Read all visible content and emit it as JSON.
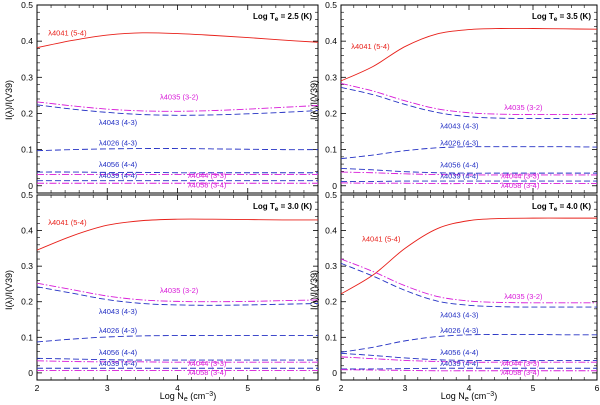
{
  "figure": {
    "ylabel": "I(λ)/I(V39)",
    "xlabel_main": "Log N",
    "xlabel_sub": "e",
    "xlabel_unit": " (cm",
    "xlabel_exp": "−3",
    "xlabel_close": ")"
  },
  "colors": {
    "red": "#e8201a",
    "blue": "#2431c4",
    "magenta": "#d81ad8"
  },
  "chart_data": [
    {
      "type": "line",
      "panel": "top-left",
      "title": "Log T",
      "title_sub": "e",
      "title_value": " = 2.5 (K)",
      "xlim": [
        2,
        6
      ],
      "ylim": [
        -0.02,
        0.5
      ],
      "xticks": [
        "2",
        "3",
        "4",
        "5",
        "6"
      ],
      "yticks": [
        "0",
        "0.1",
        "0.2",
        "0.3",
        "0.4",
        "0.5"
      ],
      "x": [
        2,
        2.5,
        3,
        3.5,
        4,
        4.5,
        5,
        5.5,
        6
      ],
      "series": [
        {
          "name": "λ4041 (5-4)",
          "color": "red",
          "dash": "solid",
          "values": [
            0.382,
            0.402,
            0.417,
            0.423,
            0.421,
            0.416,
            0.41,
            0.403,
            0.397
          ],
          "label_x": 2.16,
          "label_y": 0.415
        },
        {
          "name": "λ4035 (3-2)",
          "color": "magenta",
          "dash": "dashdot",
          "values": [
            0.232,
            0.221,
            0.212,
            0.207,
            0.206,
            0.208,
            0.212,
            0.217,
            0.222
          ],
          "label_x": 3.75,
          "label_y": 0.238
        },
        {
          "name": "λ4043 (4-3)",
          "color": "blue",
          "dash": "dashed",
          "values": [
            0.224,
            0.212,
            0.203,
            0.197,
            0.195,
            0.196,
            0.199,
            0.203,
            0.208
          ],
          "label_x": 2.88,
          "label_y": 0.168
        },
        {
          "name": "λ4026 (4-3)",
          "color": "blue",
          "dash": "dashed",
          "values": [
            0.097,
            0.1,
            0.102,
            0.103,
            0.103,
            0.102,
            0.101,
            0.1,
            0.1
          ],
          "label_x": 2.88,
          "label_y": 0.112
        },
        {
          "name": "λ4056 (4-4)",
          "color": "blue",
          "dash": "dashed",
          "values": [
            0.038,
            0.038,
            0.037,
            0.037,
            0.036,
            0.036,
            0.036,
            0.036,
            0.036
          ],
          "label_x": 2.88,
          "label_y": 0.052
        },
        {
          "name": "λ4044 (3-3)",
          "color": "magenta",
          "dash": "dashdot",
          "values": [
            0.031,
            0.031,
            0.031,
            0.031,
            0.031,
            0.031,
            0.031,
            0.031,
            0.031
          ],
          "label_x": 4.15,
          "label_y": 0.022
        },
        {
          "name": "λ4039 (4-4)",
          "color": "blue",
          "dash": "dashed",
          "values": [
            0.014,
            0.014,
            0.014,
            0.014,
            0.014,
            0.014,
            0.014,
            0.014,
            0.014
          ],
          "label_x": 2.88,
          "label_y": 0.022
        },
        {
          "name": "λ4058 (3-4)",
          "color": "magenta",
          "dash": "dashdot",
          "values": [
            0.007,
            0.007,
            0.007,
            0.007,
            0.007,
            0.007,
            0.007,
            0.007,
            0.007
          ],
          "label_x": 4.15,
          "label_y": -0.005
        }
      ]
    },
    {
      "type": "line",
      "panel": "top-right",
      "title": "Log T",
      "title_sub": "e",
      "title_value": " = 3.5 (K)",
      "xlim": [
        2,
        6
      ],
      "ylim": [
        -0.02,
        0.5
      ],
      "xticks": [
        "2",
        "3",
        "4",
        "5",
        "6"
      ],
      "yticks": [
        "0",
        "0.1",
        "0.2",
        "0.3",
        "0.4",
        "0.5"
      ],
      "x": [
        2,
        2.5,
        3,
        3.5,
        4,
        4.5,
        5,
        5.5,
        6
      ],
      "series": [
        {
          "name": "λ4041 (5-4)",
          "color": "red",
          "dash": "solid",
          "values": [
            0.29,
            0.33,
            0.385,
            0.42,
            0.432,
            0.435,
            0.435,
            0.434,
            0.433
          ],
          "label_x": 2.16,
          "label_y": 0.378
        },
        {
          "name": "λ4035 (3-2)",
          "color": "magenta",
          "dash": "dashdot",
          "values": [
            0.283,
            0.262,
            0.235,
            0.213,
            0.202,
            0.198,
            0.197,
            0.197,
            0.198
          ],
          "label_x": 4.55,
          "label_y": 0.21
        },
        {
          "name": "λ4043 (4-3)",
          "color": "blue",
          "dash": "dashed",
          "values": [
            0.272,
            0.252,
            0.225,
            0.203,
            0.191,
            0.187,
            0.186,
            0.186,
            0.186
          ],
          "label_x": 3.55,
          "label_y": 0.158
        },
        {
          "name": "λ4026 (4-3)",
          "color": "blue",
          "dash": "dashed",
          "values": [
            0.075,
            0.085,
            0.097,
            0.105,
            0.108,
            0.108,
            0.108,
            0.108,
            0.107
          ],
          "label_x": 3.55,
          "label_y": 0.112
        },
        {
          "name": "λ4056 (4-4)",
          "color": "blue",
          "dash": "dashed",
          "values": [
            0.048,
            0.044,
            0.039,
            0.036,
            0.035,
            0.035,
            0.035,
            0.035,
            0.035
          ],
          "label_x": 3.55,
          "label_y": 0.05
        },
        {
          "name": "λ4044 (3-3)",
          "color": "magenta",
          "dash": "dashdot",
          "values": [
            0.038,
            0.036,
            0.033,
            0.031,
            0.03,
            0.03,
            0.03,
            0.03,
            0.03
          ],
          "label_x": 4.5,
          "label_y": 0.02
        },
        {
          "name": "λ4039 (4-4)",
          "color": "blue",
          "dash": "dashed",
          "values": [
            0.012,
            0.012,
            0.013,
            0.013,
            0.013,
            0.013,
            0.013,
            0.013,
            0.013
          ],
          "label_x": 3.55,
          "label_y": 0.02
        },
        {
          "name": "λ4058 (3-4)",
          "color": "magenta",
          "dash": "dashdot",
          "values": [
            0.008,
            0.007,
            0.007,
            0.006,
            0.006,
            0.006,
            0.006,
            0.006,
            0.006
          ],
          "label_x": 4.5,
          "label_y": -0.006
        }
      ]
    },
    {
      "type": "line",
      "panel": "bottom-left",
      "title": "Log T",
      "title_sub": "e",
      "title_value": " = 3.0 (K)",
      "xlim": [
        2,
        6
      ],
      "ylim": [
        -0.02,
        0.5
      ],
      "xticks": [
        "2",
        "3",
        "4",
        "5",
        "6"
      ],
      "yticks": [
        "0",
        "0.1",
        "0.2",
        "0.3",
        "0.4",
        "0.5"
      ],
      "x": [
        2,
        2.5,
        3,
        3.5,
        4,
        4.5,
        5,
        5.5,
        6
      ],
      "series": [
        {
          "name": "λ4041 (5-4)",
          "color": "red",
          "dash": "solid",
          "values": [
            0.345,
            0.385,
            0.415,
            0.428,
            0.432,
            0.432,
            0.431,
            0.43,
            0.43
          ],
          "label_x": 2.16,
          "label_y": 0.415
        },
        {
          "name": "λ4035 (3-2)",
          "color": "magenta",
          "dash": "dashdot",
          "values": [
            0.252,
            0.234,
            0.216,
            0.205,
            0.201,
            0.2,
            0.201,
            0.203,
            0.205
          ],
          "label_x": 3.75,
          "label_y": 0.224
        },
        {
          "name": "λ4043 (4-3)",
          "color": "blue",
          "dash": "dashed",
          "values": [
            0.242,
            0.224,
            0.206,
            0.195,
            0.191,
            0.19,
            0.191,
            0.193,
            0.195
          ],
          "label_x": 2.88,
          "label_y": 0.165
        },
        {
          "name": "λ4026 (4-3)",
          "color": "blue",
          "dash": "dashed",
          "values": [
            0.087,
            0.095,
            0.101,
            0.104,
            0.105,
            0.105,
            0.105,
            0.105,
            0.105
          ],
          "label_x": 2.88,
          "label_y": 0.112
        },
        {
          "name": "λ4056 (4-4)",
          "color": "blue",
          "dash": "dashed",
          "values": [
            0.041,
            0.039,
            0.037,
            0.036,
            0.036,
            0.036,
            0.036,
            0.036,
            0.036
          ],
          "label_x": 2.88,
          "label_y": 0.05
        },
        {
          "name": "λ4044 (3-3)",
          "color": "magenta",
          "dash": "dashdot",
          "values": [
            0.034,
            0.032,
            0.031,
            0.031,
            0.03,
            0.03,
            0.03,
            0.03,
            0.03
          ],
          "label_x": 4.15,
          "label_y": 0.02
        },
        {
          "name": "λ4039 (4-4)",
          "color": "blue",
          "dash": "dashed",
          "values": [
            0.013,
            0.013,
            0.013,
            0.013,
            0.013,
            0.013,
            0.013,
            0.013,
            0.013
          ],
          "label_x": 2.88,
          "label_y": 0.02
        },
        {
          "name": "λ4058 (3-4)",
          "color": "magenta",
          "dash": "dashdot",
          "values": [
            0.007,
            0.007,
            0.007,
            0.007,
            0.007,
            0.007,
            0.007,
            0.007,
            0.007
          ],
          "label_x": 4.15,
          "label_y": -0.006
        }
      ]
    },
    {
      "type": "line",
      "panel": "bottom-right",
      "title": "Log T",
      "title_sub": "e",
      "title_value": " = 4.0 (K)",
      "xlim": [
        2,
        6
      ],
      "ylim": [
        -0.02,
        0.5
      ],
      "xticks": [
        "2",
        "3",
        "4",
        "5",
        "6"
      ],
      "yticks": [
        "0",
        "0.1",
        "0.2",
        "0.3",
        "0.4",
        "0.5"
      ],
      "x": [
        2,
        2.5,
        3,
        3.5,
        4,
        4.5,
        5,
        5.5,
        6
      ],
      "series": [
        {
          "name": "λ4041 (5-4)",
          "color": "red",
          "dash": "solid",
          "values": [
            0.222,
            0.275,
            0.35,
            0.405,
            0.428,
            0.434,
            0.435,
            0.435,
            0.435
          ],
          "label_x": 2.33,
          "label_y": 0.37
        },
        {
          "name": "λ4035 (3-2)",
          "color": "magenta",
          "dash": "dashdot",
          "values": [
            0.32,
            0.285,
            0.245,
            0.215,
            0.202,
            0.198,
            0.197,
            0.197,
            0.197
          ],
          "label_x": 4.55,
          "label_y": 0.208
        },
        {
          "name": "λ4043 (4-3)",
          "color": "blue",
          "dash": "dashed",
          "values": [
            0.308,
            0.272,
            0.232,
            0.202,
            0.19,
            0.186,
            0.185,
            0.185,
            0.185
          ],
          "label_x": 3.55,
          "label_y": 0.155
        },
        {
          "name": "λ4026 (4-3)",
          "color": "blue",
          "dash": "dashed",
          "values": [
            0.058,
            0.072,
            0.09,
            0.102,
            0.107,
            0.108,
            0.108,
            0.107,
            0.107
          ],
          "label_x": 3.55,
          "label_y": 0.112
        },
        {
          "name": "λ4056 (4-4)",
          "color": "blue",
          "dash": "dashed",
          "values": [
            0.055,
            0.049,
            0.042,
            0.037,
            0.035,
            0.035,
            0.035,
            0.035,
            0.035
          ],
          "label_x": 3.55,
          "label_y": 0.05
        },
        {
          "name": "λ4044 (3-3)",
          "color": "magenta",
          "dash": "dashdot",
          "values": [
            0.045,
            0.04,
            0.035,
            0.032,
            0.03,
            0.03,
            0.03,
            0.03,
            0.03
          ],
          "label_x": 4.5,
          "label_y": 0.02
        },
        {
          "name": "λ4039 (4-4)",
          "color": "blue",
          "dash": "dashed",
          "values": [
            0.011,
            0.011,
            0.012,
            0.013,
            0.013,
            0.013,
            0.013,
            0.013,
            0.013
          ],
          "label_x": 3.55,
          "label_y": 0.02
        },
        {
          "name": "λ4058 (3-4)",
          "color": "magenta",
          "dash": "dashdot",
          "values": [
            0.009,
            0.008,
            0.007,
            0.006,
            0.006,
            0.006,
            0.006,
            0.006,
            0.006
          ],
          "label_x": 4.5,
          "label_y": -0.006
        }
      ]
    }
  ]
}
